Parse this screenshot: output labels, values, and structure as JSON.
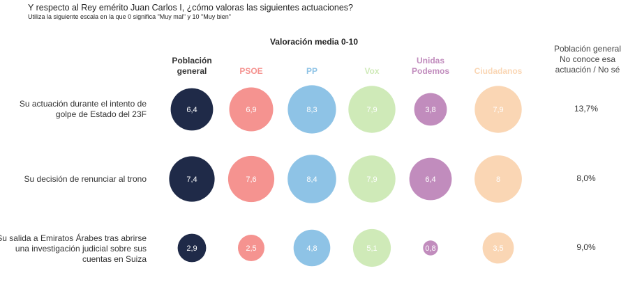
{
  "title": "Y respecto al Rey emérito Juan Carlos I, ¿cómo valoras las siguientes actuaciones?",
  "subtitle": "Utiliza la siguiente escala en la que 0 significa \"Muy mal\" y 10 \"Muy bien\"",
  "scale_title": "Valoración media 0-10",
  "pop_header": [
    "Población general",
    "No conoce esa",
    "actuación / No sé"
  ],
  "chart_data": {
    "type": "bubble",
    "title": "Valoración media 0-10",
    "series": [
      {
        "name": "Población general",
        "header": [
          "Población",
          "general"
        ],
        "color": "#1f2a48",
        "text_color": "#ffffff",
        "values": [
          6.4,
          7.4,
          2.9
        ]
      },
      {
        "name": "PSOE",
        "header": [
          "PSOE"
        ],
        "color": "#f59390",
        "text_color": "#ffffff",
        "values": [
          6.9,
          7.6,
          2.5
        ]
      },
      {
        "name": "PP",
        "header": [
          "PP"
        ],
        "color": "#8ec3e6",
        "text_color": "#ffffff",
        "values": [
          8.3,
          8.4,
          4.8
        ]
      },
      {
        "name": "Vox",
        "header": [
          "Vox"
        ],
        "color": "#cfeab8",
        "text_color": "#ffffff",
        "values": [
          7.9,
          7.9,
          5.1
        ]
      },
      {
        "name": "Unidas Podemos",
        "header": [
          "Unidas",
          "Podemos"
        ],
        "color": "#c18cbd",
        "text_color": "#ffffff",
        "values": [
          3.8,
          6.4,
          0.8
        ]
      },
      {
        "name": "Ciudadanos",
        "header": [
          "Ciudadanos"
        ],
        "color": "#fad6b4",
        "text_color": "#ffffff",
        "values": [
          7.9,
          8.0,
          3.5
        ]
      }
    ],
    "rows": [
      {
        "label": [
          "Su actuación durante el intento de",
          "golpe de Estado del 23F"
        ],
        "no_sabe": "13,7%"
      },
      {
        "label": [
          "Su decisión de renunciar al trono"
        ],
        "no_sabe": "8,0%"
      },
      {
        "label": [
          "Su salida a Emiratos Árabes tras abrirse",
          "una investigación judicial sobre sus",
          "cuentas en Suiza"
        ],
        "no_sabe": "9,0%"
      }
    ]
  }
}
